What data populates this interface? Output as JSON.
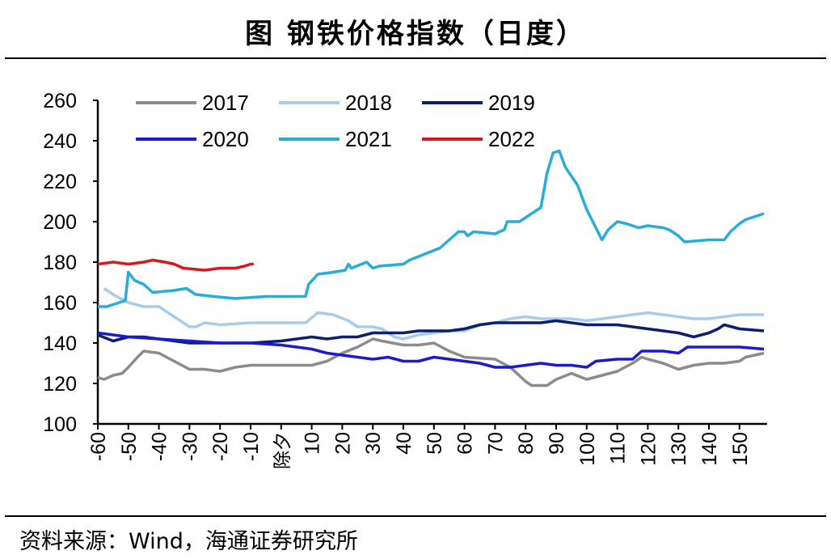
{
  "title": "图  钢铁价格指数（日度）",
  "source": "资料来源：Wind，海通证券研究所",
  "chart_data": {
    "type": "line",
    "title": "钢铁价格指数（日度）",
    "xlabel": "",
    "ylabel": "",
    "xlim": [
      -60,
      159
    ],
    "ylim": [
      100,
      260
    ],
    "yticks": [
      100,
      120,
      140,
      160,
      180,
      200,
      220,
      240,
      260
    ],
    "xticks": [
      -60,
      -50,
      -40,
      -30,
      -20,
      -10,
      0,
      10,
      20,
      30,
      40,
      50,
      60,
      70,
      80,
      90,
      100,
      110,
      120,
      130,
      140,
      150
    ],
    "xtick_labels": [
      "-60",
      "-50",
      "-40",
      "-30",
      "-20",
      "-10",
      "除夕",
      "10",
      "20",
      "30",
      "40",
      "50",
      "60",
      "70",
      "80",
      "90",
      "100",
      "110",
      "120",
      "130",
      "140",
      "150"
    ],
    "legend_position": "top",
    "grid": false,
    "series": [
      {
        "name": "2017",
        "color": "#8c8c8c",
        "points": [
          [
            -60,
            123
          ],
          [
            -58,
            122
          ],
          [
            -55,
            124
          ],
          [
            -52,
            125
          ],
          [
            -50,
            128
          ],
          [
            -47,
            133
          ],
          [
            -45,
            136
          ],
          [
            -40,
            135
          ],
          [
            -35,
            131
          ],
          [
            -30,
            127
          ],
          [
            -25,
            127
          ],
          [
            -20,
            126
          ],
          [
            -15,
            128
          ],
          [
            -10,
            129
          ],
          [
            0,
            129
          ],
          [
            10,
            129
          ],
          [
            15,
            131
          ],
          [
            20,
            135
          ],
          [
            25,
            138
          ],
          [
            30,
            142
          ],
          [
            33,
            141
          ],
          [
            40,
            139
          ],
          [
            45,
            139
          ],
          [
            50,
            140
          ],
          [
            55,
            136
          ],
          [
            60,
            133
          ],
          [
            70,
            132
          ],
          [
            75,
            128
          ],
          [
            80,
            121
          ],
          [
            82,
            119
          ],
          [
            87,
            119
          ],
          [
            90,
            122
          ],
          [
            95,
            125
          ],
          [
            100,
            122
          ],
          [
            105,
            124
          ],
          [
            110,
            126
          ],
          [
            115,
            130
          ],
          [
            118,
            133
          ],
          [
            120,
            132
          ],
          [
            125,
            130
          ],
          [
            130,
            127
          ],
          [
            135,
            129
          ],
          [
            140,
            130
          ],
          [
            145,
            130
          ],
          [
            150,
            131
          ],
          [
            152,
            133
          ],
          [
            158,
            135
          ]
        ]
      },
      {
        "name": "2018",
        "color": "#a9cde8",
        "points": [
          [
            -58,
            167
          ],
          [
            -55,
            164
          ],
          [
            -50,
            160
          ],
          [
            -45,
            158
          ],
          [
            -40,
            158
          ],
          [
            -35,
            153
          ],
          [
            -30,
            148
          ],
          [
            -28,
            148
          ],
          [
            -25,
            150
          ],
          [
            -20,
            149
          ],
          [
            -10,
            150
          ],
          [
            0,
            150
          ],
          [
            8,
            150
          ],
          [
            12,
            155
          ],
          [
            17,
            154
          ],
          [
            22,
            151
          ],
          [
            25,
            148
          ],
          [
            30,
            148
          ],
          [
            33,
            147
          ],
          [
            37,
            143
          ],
          [
            40,
            142
          ],
          [
            45,
            144
          ],
          [
            50,
            145
          ],
          [
            55,
            146
          ],
          [
            60,
            146
          ],
          [
            65,
            149
          ],
          [
            70,
            150
          ],
          [
            75,
            152
          ],
          [
            80,
            153
          ],
          [
            85,
            152
          ],
          [
            90,
            152
          ],
          [
            95,
            152
          ],
          [
            100,
            151
          ],
          [
            105,
            152
          ],
          [
            110,
            153
          ],
          [
            115,
            154
          ],
          [
            120,
            155
          ],
          [
            125,
            154
          ],
          [
            130,
            153
          ],
          [
            135,
            152
          ],
          [
            140,
            152
          ],
          [
            145,
            153
          ],
          [
            150,
            154
          ],
          [
            158,
            154
          ]
        ]
      },
      {
        "name": "2019",
        "color": "#0b1f6e",
        "points": [
          [
            -60,
            144
          ],
          [
            -55,
            141
          ],
          [
            -50,
            143
          ],
          [
            -45,
            143
          ],
          [
            -40,
            142
          ],
          [
            -30,
            140
          ],
          [
            -20,
            140
          ],
          [
            -10,
            140
          ],
          [
            0,
            141
          ],
          [
            5,
            142
          ],
          [
            10,
            143
          ],
          [
            15,
            142
          ],
          [
            20,
            143
          ],
          [
            25,
            143
          ],
          [
            30,
            145
          ],
          [
            40,
            145
          ],
          [
            45,
            146
          ],
          [
            50,
            146
          ],
          [
            55,
            146
          ],
          [
            60,
            147
          ],
          [
            65,
            149
          ],
          [
            70,
            150
          ],
          [
            75,
            150
          ],
          [
            80,
            150
          ],
          [
            85,
            150
          ],
          [
            90,
            151
          ],
          [
            95,
            150
          ],
          [
            100,
            149
          ],
          [
            105,
            149
          ],
          [
            110,
            149
          ],
          [
            115,
            148
          ],
          [
            120,
            147
          ],
          [
            125,
            146
          ],
          [
            130,
            145
          ],
          [
            135,
            143
          ],
          [
            140,
            145
          ],
          [
            143,
            147
          ],
          [
            145,
            149
          ],
          [
            150,
            147
          ],
          [
            158,
            146
          ]
        ]
      },
      {
        "name": "2020",
        "color": "#1a1acf",
        "points": [
          [
            -60,
            145
          ],
          [
            -50,
            143
          ],
          [
            -40,
            142
          ],
          [
            -30,
            141
          ],
          [
            -20,
            140
          ],
          [
            -10,
            140
          ],
          [
            0,
            139
          ],
          [
            10,
            137
          ],
          [
            15,
            135
          ],
          [
            20,
            134
          ],
          [
            25,
            133
          ],
          [
            30,
            132
          ],
          [
            35,
            133
          ],
          [
            40,
            131
          ],
          [
            45,
            131
          ],
          [
            50,
            133
          ],
          [
            55,
            132
          ],
          [
            60,
            131
          ],
          [
            65,
            130
          ],
          [
            70,
            128
          ],
          [
            75,
            128
          ],
          [
            80,
            129
          ],
          [
            85,
            130
          ],
          [
            90,
            129
          ],
          [
            95,
            129
          ],
          [
            100,
            128
          ],
          [
            103,
            131
          ],
          [
            110,
            132
          ],
          [
            115,
            132
          ],
          [
            118,
            136
          ],
          [
            125,
            136
          ],
          [
            130,
            135
          ],
          [
            133,
            138
          ],
          [
            140,
            138
          ],
          [
            150,
            138
          ],
          [
            158,
            137
          ]
        ]
      },
      {
        "name": "2021",
        "color": "#29acd9",
        "points": [
          [
            -60,
            158
          ],
          [
            -57,
            158
          ],
          [
            -53,
            160
          ],
          [
            -51,
            161
          ],
          [
            -50,
            175
          ],
          [
            -48,
            171
          ],
          [
            -45,
            169
          ],
          [
            -42,
            165
          ],
          [
            -35,
            166
          ],
          [
            -31,
            167
          ],
          [
            -28,
            164
          ],
          [
            -22,
            163
          ],
          [
            -15,
            162
          ],
          [
            -5,
            163
          ],
          [
            0,
            163
          ],
          [
            6,
            163
          ],
          [
            8,
            163
          ],
          [
            9,
            169
          ],
          [
            12,
            174
          ],
          [
            17,
            175
          ],
          [
            21,
            176
          ],
          [
            22,
            179
          ],
          [
            23,
            177
          ],
          [
            28,
            180
          ],
          [
            30,
            177
          ],
          [
            32,
            178
          ],
          [
            40,
            179
          ],
          [
            42,
            181
          ],
          [
            47,
            184
          ],
          [
            52,
            187
          ],
          [
            55,
            191
          ],
          [
            58,
            195
          ],
          [
            60,
            195
          ],
          [
            61,
            193
          ],
          [
            63,
            195
          ],
          [
            70,
            194
          ],
          [
            73,
            196
          ],
          [
            74,
            200
          ],
          [
            78,
            200
          ],
          [
            85,
            207
          ],
          [
            87,
            224
          ],
          [
            89,
            234
          ],
          [
            91,
            235
          ],
          [
            93,
            227
          ],
          [
            97,
            218
          ],
          [
            100,
            206
          ],
          [
            103,
            197
          ],
          [
            105,
            191
          ],
          [
            107,
            196
          ],
          [
            110,
            200
          ],
          [
            113,
            199
          ],
          [
            117,
            197
          ],
          [
            120,
            198
          ],
          [
            125,
            197
          ],
          [
            127,
            196
          ],
          [
            130,
            193
          ],
          [
            132,
            190
          ],
          [
            140,
            191
          ],
          [
            145,
            191
          ],
          [
            147,
            195
          ],
          [
            150,
            199
          ],
          [
            152,
            201
          ],
          [
            158,
            204
          ]
        ]
      },
      {
        "name": "2022",
        "color": "#d7191c",
        "points": [
          [
            -60,
            179
          ],
          [
            -55,
            180
          ],
          [
            -50,
            179
          ],
          [
            -45,
            180
          ],
          [
            -42,
            181
          ],
          [
            -38,
            180
          ],
          [
            -35,
            179
          ],
          [
            -32,
            177
          ],
          [
            -25,
            176
          ],
          [
            -20,
            177
          ],
          [
            -15,
            177
          ],
          [
            -12,
            178
          ],
          [
            -10,
            179
          ],
          [
            -9,
            179
          ]
        ]
      }
    ]
  }
}
